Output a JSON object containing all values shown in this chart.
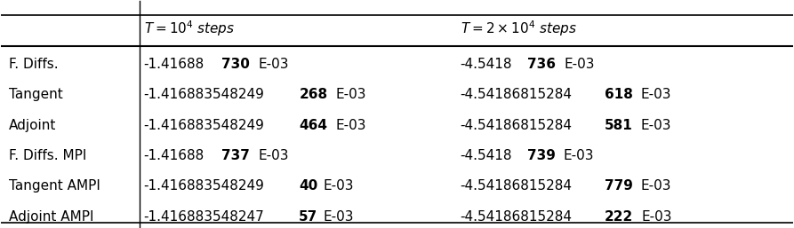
{
  "col0_header": "",
  "col1_header_normal": "T = 10",
  "col1_header_super": "4",
  "col1_header_suffix": " steps",
  "col2_header_normal": "T = 2 × 10",
  "col2_header_super": "4",
  "col2_header_suffix": " steps",
  "rows": [
    {
      "label": "F. Diffs.",
      "col1_prefix": "-1.41688",
      "col1_bold": "730",
      "col1_suffix": "E-03",
      "col2_prefix": "-4.5418",
      "col2_bold": "736",
      "col2_suffix": "E-03"
    },
    {
      "label": "Tangent",
      "col1_prefix": "-1.416883548249",
      "col1_bold": "268",
      "col1_suffix": "E-03",
      "col2_prefix": "-4.54186815284",
      "col2_bold": "618",
      "col2_suffix": "E-03"
    },
    {
      "label": "Adjoint",
      "col1_prefix": "-1.416883548249",
      "col1_bold": "464",
      "col1_suffix": "E-03",
      "col2_prefix": "-4.54186815284",
      "col2_bold": "581",
      "col2_suffix": "E-03"
    },
    {
      "label": "F. Diffs. MPI",
      "col1_prefix": "-1.41688",
      "col1_bold": "737",
      "col1_suffix": "E-03",
      "col2_prefix": "-4.5418",
      "col2_bold": "739",
      "col2_suffix": "E-03"
    },
    {
      "label": "Tangent AMPI",
      "col1_prefix": "-1.416883548249",
      "col1_bold": "40",
      "col1_suffix": "E-03",
      "col2_prefix": "-4.54186815284",
      "col2_bold": "779",
      "col2_suffix": "E-03"
    },
    {
      "label": "Adjoint AMPI",
      "col1_prefix": "-1.416883548247",
      "col1_bold": "57",
      "col1_suffix": "E-03",
      "col2_prefix": "-4.54186815284",
      "col2_bold": "222",
      "col2_suffix": "E-03"
    }
  ],
  "font_size": 11,
  "header_font_size": 11,
  "bg_color": "white",
  "text_color": "black"
}
